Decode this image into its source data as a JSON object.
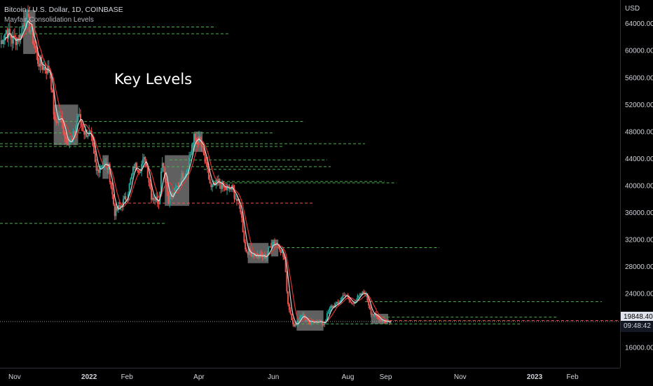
{
  "header": {
    "symbol_line": "Bitcoin / U.S. Dollar, 1D, COINBASE",
    "indicator_line": "Mayfair Consolidation Levels"
  },
  "annotation": {
    "text": "Key Levels"
  },
  "currency_label": "USD",
  "last_price": "19848.40",
  "countdown": "09:48:42",
  "colors": {
    "background": "#000000",
    "up": "#26a69a",
    "down": "#ef5350",
    "ma_red": "#e53935",
    "ma_white": "#e0e0e0",
    "level_green": "#4caf50",
    "level_red": "#ef5350",
    "zone": "#808080"
  },
  "chart_data": {
    "type": "candlestick",
    "title": "Bitcoin / U.S. Dollar, 1D, COINBASE",
    "ylabel": "USD",
    "y_ticks": [
      16000,
      20000,
      24000,
      28000,
      32000,
      36000,
      40000,
      44000,
      48000,
      52000,
      56000,
      60000,
      64000
    ],
    "y_tick_labels": [
      "16000.00",
      "20000.00",
      "24000.00",
      "28000.00",
      "32000.00",
      "36000.00",
      "40000.00",
      "44000.00",
      "48000.00",
      "52000.00",
      "56000.00",
      "60000.00",
      "64000.00"
    ],
    "ylim": [
      13000,
      67500
    ],
    "x_tick_labels": [
      "Nov",
      "2022",
      "Feb",
      "Apr",
      "Jun",
      "Aug",
      "Sep",
      "Nov",
      "2023",
      "Feb"
    ],
    "x_tick_dates": [
      "2021-11-01",
      "2022-01-01",
      "2022-02-01",
      "2022-04-01",
      "2022-06-01",
      "2022-08-01",
      "2022-09-01",
      "2022-11-01",
      "2023-01-01",
      "2023-02-01"
    ],
    "xlim": [
      "2021-10-20",
      "2023-03-12"
    ],
    "last_value": 19848.4,
    "series": [
      {
        "kind": "price_path",
        "points": [
          [
            "2021-10-20",
            61000
          ],
          [
            "2021-10-25",
            63000
          ],
          [
            "2021-10-30",
            61500
          ],
          [
            "2021-11-05",
            62000
          ],
          [
            "2021-11-10",
            65000
          ],
          [
            "2021-11-15",
            62500
          ],
          [
            "2021-11-20",
            58500
          ],
          [
            "2021-11-25",
            57500
          ],
          [
            "2021-11-30",
            57000
          ],
          [
            "2021-12-04",
            49000
          ],
          [
            "2021-12-08",
            50500
          ],
          [
            "2021-12-13",
            47000
          ],
          [
            "2021-12-18",
            46500
          ],
          [
            "2021-12-23",
            50500
          ],
          [
            "2021-12-28",
            48000
          ],
          [
            "2022-01-02",
            47500
          ],
          [
            "2022-01-07",
            42000
          ],
          [
            "2022-01-12",
            43500
          ],
          [
            "2022-01-17",
            42500
          ],
          [
            "2022-01-22",
            36000
          ],
          [
            "2022-01-27",
            37000
          ],
          [
            "2022-02-01",
            38500
          ],
          [
            "2022-02-07",
            43000
          ],
          [
            "2022-02-11",
            42500
          ],
          [
            "2022-02-16",
            44000
          ],
          [
            "2022-02-21",
            38500
          ],
          [
            "2022-02-27",
            37700
          ],
          [
            "2022-03-02",
            44000
          ],
          [
            "2022-03-07",
            38000
          ],
          [
            "2022-03-12",
            39000
          ],
          [
            "2022-03-17",
            41000
          ],
          [
            "2022-03-22",
            42500
          ],
          [
            "2022-03-28",
            47000
          ],
          [
            "2022-04-02",
            46500
          ],
          [
            "2022-04-06",
            43500
          ],
          [
            "2022-04-11",
            39500
          ],
          [
            "2022-04-17",
            40500
          ],
          [
            "2022-04-22",
            39500
          ],
          [
            "2022-04-28",
            39500
          ],
          [
            "2022-05-05",
            36500
          ],
          [
            "2022-05-09",
            30500
          ],
          [
            "2022-05-14",
            30000
          ],
          [
            "2022-05-20",
            29500
          ],
          [
            "2022-05-26",
            29500
          ],
          [
            "2022-05-31",
            31800
          ],
          [
            "2022-06-06",
            31000
          ],
          [
            "2022-06-10",
            29000
          ],
          [
            "2022-06-13",
            22500
          ],
          [
            "2022-06-18",
            19000
          ],
          [
            "2022-06-24",
            21000
          ],
          [
            "2022-06-30",
            19500
          ],
          [
            "2022-07-06",
            20000
          ],
          [
            "2022-07-12",
            19500
          ],
          [
            "2022-07-18",
            22000
          ],
          [
            "2022-07-24",
            22500
          ],
          [
            "2022-07-29",
            24000
          ],
          [
            "2022-08-04",
            22500
          ],
          [
            "2022-08-10",
            23500
          ],
          [
            "2022-08-15",
            24300
          ],
          [
            "2022-08-20",
            21200
          ],
          [
            "2022-08-26",
            20300
          ],
          [
            "2022-08-31",
            20000
          ],
          [
            "2022-09-05",
            19848.4
          ]
        ]
      },
      {
        "kind": "ma",
        "name": "",
        "color": "red",
        "lag_days": 8
      },
      {
        "kind": "ma",
        "name": "",
        "color": "white",
        "lag_days": 4
      }
    ],
    "levels": [
      {
        "y": 63500,
        "from": "2021-10-20",
        "to": "2022-04-15",
        "color": "green"
      },
      {
        "y": 62500,
        "from": "2021-10-20",
        "to": "2022-04-25",
        "color": "green"
      },
      {
        "y": 49500,
        "from": "2021-12-08",
        "to": "2022-06-27",
        "color": "green"
      },
      {
        "y": 47800,
        "from": "2021-10-20",
        "to": "2022-06-02",
        "color": "green"
      },
      {
        "y": 46200,
        "from": "2021-10-20",
        "to": "2022-08-15",
        "color": "green"
      },
      {
        "y": 45800,
        "from": "2021-10-20",
        "to": "2022-06-10",
        "color": "green"
      },
      {
        "y": 43800,
        "from": "2022-03-08",
        "to": "2022-07-15",
        "color": "green"
      },
      {
        "y": 42800,
        "from": "2021-10-20",
        "to": "2022-07-18",
        "color": "green"
      },
      {
        "y": 42400,
        "from": "2022-04-05",
        "to": "2022-06-24",
        "color": "green"
      },
      {
        "y": 40600,
        "from": "2022-04-12",
        "to": "2022-08-31",
        "color": "green"
      },
      {
        "y": 40400,
        "from": "2022-04-14",
        "to": "2022-09-10",
        "color": "green"
      },
      {
        "y": 37400,
        "from": "2022-01-25",
        "to": "2022-07-03",
        "color": "red"
      },
      {
        "y": 34400,
        "from": "2021-10-20",
        "to": "2022-03-05",
        "color": "green"
      },
      {
        "y": 30800,
        "from": "2022-06-04",
        "to": "2022-10-15",
        "color": "green"
      },
      {
        "y": 22800,
        "from": "2022-08-15",
        "to": "2023-02-25",
        "color": "green"
      },
      {
        "y": 20500,
        "from": "2022-08-25",
        "to": "2023-01-20",
        "color": "green"
      },
      {
        "y": 20000,
        "from": "2022-08-31",
        "to": "2023-03-12",
        "color": "red"
      },
      {
        "y": 19500,
        "from": "2022-06-20",
        "to": "2022-12-20",
        "color": "green"
      }
    ],
    "zones": [
      {
        "from": "2021-11-08",
        "to": "2021-11-18",
        "y_low": 59500,
        "y_high": 66000
      },
      {
        "from": "2021-12-03",
        "to": "2021-12-23",
        "y_low": 46000,
        "y_high": 52000
      },
      {
        "from": "2022-01-12",
        "to": "2022-01-17",
        "y_low": 41000,
        "y_high": 44500
      },
      {
        "from": "2022-03-04",
        "to": "2022-03-24",
        "y_low": 37000,
        "y_high": 44500
      },
      {
        "from": "2022-03-28",
        "to": "2022-04-04",
        "y_low": 45000,
        "y_high": 48000
      },
      {
        "from": "2022-05-11",
        "to": "2022-05-28",
        "y_low": 28500,
        "y_high": 31500
      },
      {
        "from": "2022-05-30",
        "to": "2022-06-05",
        "y_low": 29500,
        "y_high": 32000
      },
      {
        "from": "2022-06-20",
        "to": "2022-07-12",
        "y_low": 18500,
        "y_high": 21500
      },
      {
        "from": "2022-08-20",
        "to": "2022-09-03",
        "y_low": 19500,
        "y_high": 21000
      }
    ]
  }
}
